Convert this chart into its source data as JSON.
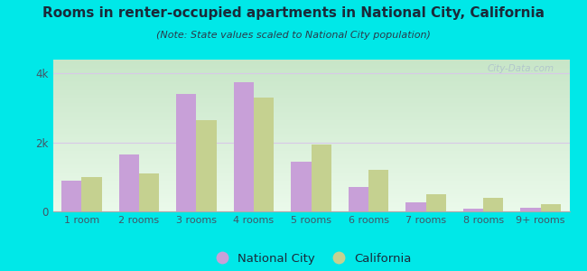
{
  "categories": [
    "1 room",
    "2 rooms",
    "3 rooms",
    "4 rooms",
    "5 rooms",
    "6 rooms",
    "7 rooms",
    "8 rooms",
    "9+ rooms"
  ],
  "national_city": [
    900,
    1650,
    3400,
    3750,
    1450,
    700,
    250,
    75,
    100
  ],
  "california": [
    1000,
    1100,
    2650,
    3300,
    1950,
    1200,
    500,
    400,
    200
  ],
  "nc_color": "#c8a0d8",
  "ca_color": "#c5d190",
  "title": "Rooms in renter-occupied apartments in National City, California",
  "subtitle": "(Note: State values scaled to National City population)",
  "ylim": [
    0,
    4400
  ],
  "yticks": [
    0,
    2000,
    4000
  ],
  "ytick_labels": [
    "0",
    "2k",
    "4k"
  ],
  "bg_color": "#00e8e8",
  "legend_nc": "National City",
  "legend_ca": "California",
  "watermark": "City-Data.com",
  "title_color": "#1a2a3a",
  "subtitle_color": "#2a3a4a",
  "tick_color": "#445566",
  "grid_color": "#d8c8e8"
}
